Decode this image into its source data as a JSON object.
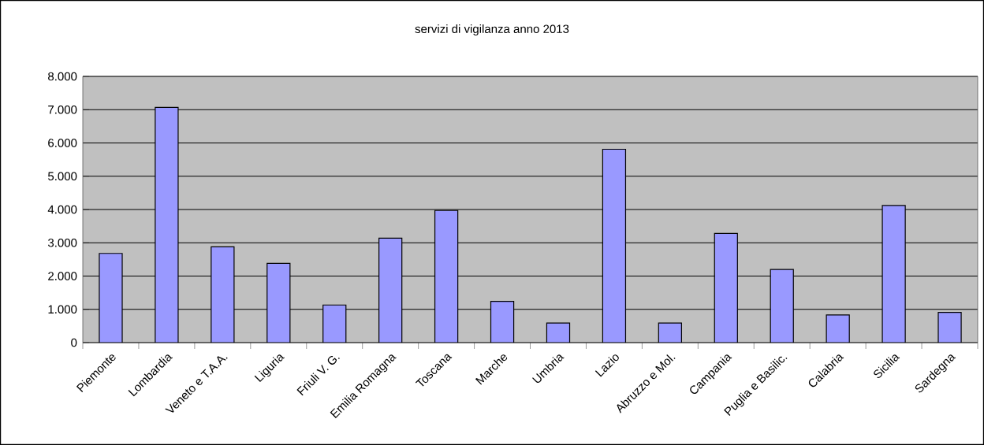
{
  "chart_data": {
    "type": "bar",
    "title": "servizi di vigilanza anno 2013",
    "categories": [
      "Piemonte",
      "Lombardia",
      "Veneto e T.A.A.",
      "Liguria",
      "Friuli V. G.",
      "Emilia Romagna",
      "Toscana",
      "Marche",
      "Umbria",
      "Lazio",
      "Abruzzo e Mol.",
      "Campania",
      "Puglia e Basilic.",
      "Calabria",
      "Sicilia",
      "Sardegna"
    ],
    "values": [
      2680,
      7070,
      2880,
      2380,
      1130,
      3140,
      3970,
      1240,
      590,
      5810,
      590,
      3280,
      2200,
      830,
      4120,
      910
    ],
    "color": "#9999ff",
    "ylim": [
      0,
      8000
    ],
    "yticks": [
      0,
      {
        "value": 1000,
        "label": "1.000"
      },
      {
        "value": 2000,
        "label": "2.000"
      },
      {
        "value": 3000,
        "label": "3.000"
      },
      {
        "value": 4000,
        "label": "4.000"
      },
      {
        "value": 5000,
        "label": "5.000"
      },
      {
        "value": 6000,
        "label": "6.000"
      },
      {
        "value": 7000,
        "label": "7.000"
      },
      {
        "value": 8000,
        "label": "8.000"
      }
    ],
    "grid": "y"
  }
}
